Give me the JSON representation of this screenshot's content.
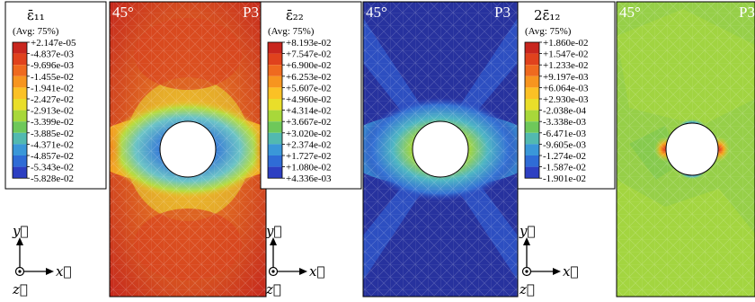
{
  "panels": [
    {
      "legend": {
        "title": "ε̄₁₁",
        "subtitle": "(Avg: 75%)",
        "values": [
          "+2.147e-05",
          "-4.837e-03",
          "-9.696e-03",
          "-1.455e-02",
          "-1.941e-02",
          "-2.427e-02",
          "-2.913e-02",
          "-3.399e-02",
          "-3.885e-02",
          "-4.371e-02",
          "-4.857e-02",
          "-5.343e-02",
          "-5.828e-02"
        ]
      },
      "field": {
        "angle_label": "45°",
        "case_label": "P3"
      },
      "axes": {
        "y_label": "y⃗",
        "x_label": "x⃗",
        "z_label": "z⃗"
      }
    },
    {
      "legend": {
        "title": "ε̄₂₂",
        "subtitle": "(Avg: 75%)",
        "values": [
          "+8.193e-02",
          "+7.547e-02",
          "+6.900e-02",
          "+6.253e-02",
          "+5.607e-02",
          "+4.960e-02",
          "+4.314e-02",
          "+3.667e-02",
          "+3.020e-02",
          "+2.374e-02",
          "+1.727e-02",
          "+1.080e-02",
          "+4.336e-03"
        ]
      },
      "field": {
        "angle_label": "45°",
        "case_label": "P3"
      },
      "axes": {
        "y_label": "y⃗",
        "x_label": "x⃗",
        "z_label": "z⃗"
      }
    },
    {
      "legend": {
        "title": "2ε̄₁₂",
        "subtitle": "(Avg: 75%)",
        "values": [
          "+1.860e-02",
          "+1.547e-02",
          "+1.233e-02",
          "+9.197e-03",
          "+6.064e-03",
          "+2.930e-03",
          "-2.038e-04",
          "-3.338e-03",
          "-6.471e-03",
          "-9.605e-03",
          "-1.274e-02",
          "-1.587e-02",
          "-1.901e-02"
        ]
      },
      "field": {
        "angle_label": "45°",
        "case_label": "P3"
      },
      "axes": {
        "y_label": "y⃗",
        "x_label": "x⃗",
        "z_label": "z⃗"
      }
    }
  ],
  "colors": {
    "scale": [
      "#c8261e",
      "#e0421d",
      "#ef6a1f",
      "#f7951f",
      "#fbc125",
      "#e9de2a",
      "#a8d83a",
      "#6ec85a",
      "#52b9b0",
      "#3a97d8",
      "#2f6cd6",
      "#2d3fc2",
      "#1e2592"
    ]
  }
}
